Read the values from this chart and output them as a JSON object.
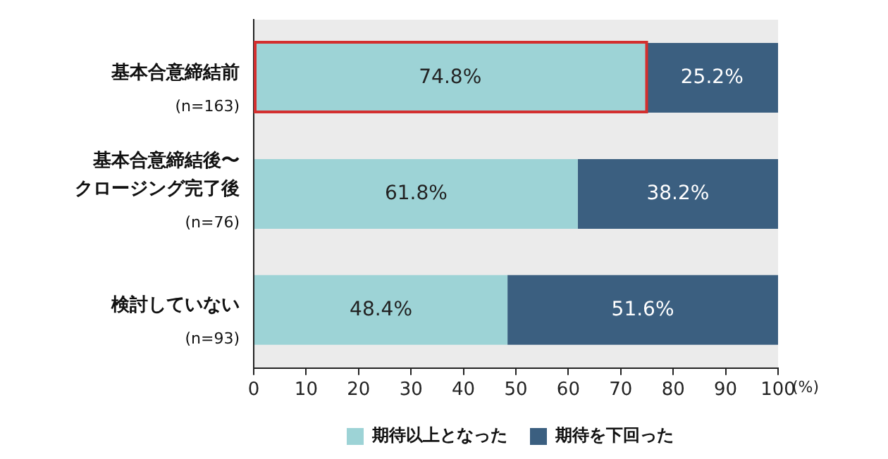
{
  "chart_data": {
    "type": "bar",
    "orientation": "horizontal",
    "stacked": true,
    "xlabel": "(%)",
    "categories": [
      "基本合意締結前\n(n=163)",
      "基本合意締結後〜クロージング完了後\n(n=76)",
      "検討していない\n(n=93)"
    ],
    "series": [
      {
        "name": "期待以上となった",
        "color": "#9dd3d6",
        "values": [
          74.8,
          61.8,
          48.4
        ],
        "value_labels": [
          "74.8%",
          "61.8%",
          "48.4%"
        ]
      },
      {
        "name": "期待を下回った",
        "color": "#3b5f80",
        "values": [
          25.2,
          38.2,
          51.6
        ],
        "value_labels": [
          "25.2%",
          "38.2%",
          "51.6%"
        ]
      }
    ],
    "xlim": [
      0,
      100
    ],
    "xticks": [
      0,
      10,
      20,
      30,
      40,
      50,
      60,
      70,
      80,
      90,
      100
    ],
    "grid": false,
    "legend": "bottom"
  }
}
